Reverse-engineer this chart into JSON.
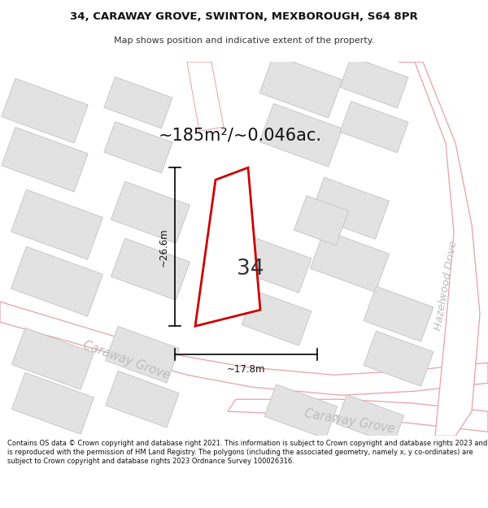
{
  "title_line1": "34, CARAWAY GROVE, SWINTON, MEXBOROUGH, S64 8PR",
  "title_line2": "Map shows position and indicative extent of the property.",
  "area_text": "~185m²/~0.046ac.",
  "dim_width": "~17.8m",
  "dim_height": "~26.6m",
  "house_number": "34",
  "street1": "Caraway Grove",
  "street2": "Caraway Grove",
  "street3": "Hazelwood Drive",
  "footer_text": "Contains OS data © Crown copyright and database right 2021. This information is subject to Crown copyright and database rights 2023 and is reproduced with the permission of HM Land Registry. The polygons (including the associated geometry, namely x, y co-ordinates) are subject to Crown copyright and database rights 2023 Ordnance Survey 100026316.",
  "bg_color": "#f2f2f2",
  "road_color": "#ffffff",
  "road_edge_color": "#e8a0a8",
  "building_fill": "#e2e2e2",
  "building_edge": "#c8c8c8",
  "plot_fill": "#ffffff",
  "plot_edge": "#cc0000",
  "plot_lw": 2.0,
  "border_color": "#cccccc"
}
